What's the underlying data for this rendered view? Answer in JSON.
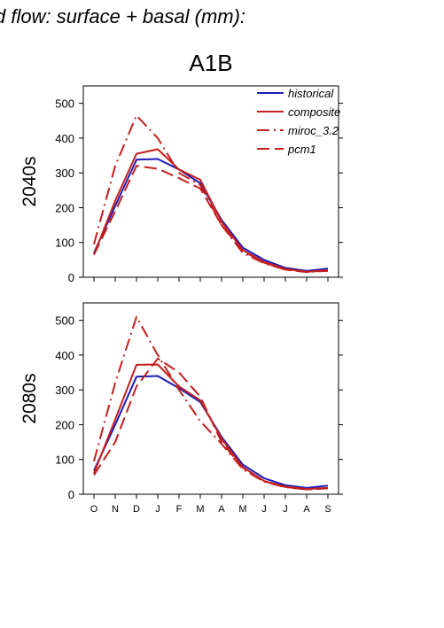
{
  "figure": {
    "title_partial": "d flow: surface + basal (mm):",
    "scenario": "A1B"
  },
  "chart_data": [
    {
      "type": "line",
      "panel_label": "2040s",
      "categories": [
        "O",
        "N",
        "D",
        "J",
        "F",
        "M",
        "A",
        "M",
        "J",
        "J",
        "A",
        "S"
      ],
      "ylim": [
        0,
        550
      ],
      "yticks": [
        0,
        100,
        200,
        300,
        400,
        500
      ],
      "show_xtick_labels": false,
      "legend": "top-right",
      "grid": false,
      "series": [
        {
          "name": "historical",
          "color": "#1c1cb8",
          "style": "solid",
          "values": [
            70,
            205,
            338,
            340,
            310,
            270,
            165,
            85,
            50,
            27,
            18,
            25
          ]
        },
        {
          "name": "composite",
          "color": "#c41e1e",
          "style": "solid",
          "values": [
            65,
            220,
            355,
            368,
            310,
            280,
            160,
            78,
            44,
            24,
            16,
            20
          ]
        },
        {
          "name": "miroc_3.2",
          "color": "#c41e1e",
          "style": "dashdot",
          "values": [
            95,
            320,
            465,
            400,
            300,
            265,
            150,
            70,
            40,
            22,
            15,
            18
          ]
        },
        {
          "name": "pcm1",
          "color": "#c41e1e",
          "style": "dashed",
          "values": [
            65,
            190,
            320,
            312,
            285,
            255,
            150,
            75,
            42,
            22,
            15,
            20
          ]
        }
      ]
    },
    {
      "type": "line",
      "panel_label": "2080s",
      "categories": [
        "O",
        "N",
        "D",
        "J",
        "F",
        "M",
        "A",
        "M",
        "J",
        "J",
        "A",
        "S"
      ],
      "ylim": [
        0,
        550
      ],
      "yticks": [
        0,
        100,
        200,
        300,
        400,
        500
      ],
      "show_xtick_labels": true,
      "grid": false,
      "series": [
        {
          "name": "historical",
          "color": "#1c1cb8",
          "style": "solid",
          "values": [
            68,
            200,
            338,
            340,
            305,
            265,
            165,
            85,
            46,
            26,
            18,
            25
          ]
        },
        {
          "name": "composite",
          "color": "#c41e1e",
          "style": "solid",
          "values": [
            60,
            215,
            372,
            373,
            310,
            270,
            160,
            78,
            38,
            22,
            15,
            18
          ]
        },
        {
          "name": "miroc_3.2",
          "color": "#c41e1e",
          "style": "dashdot",
          "values": [
            95,
            320,
            510,
            400,
            300,
            210,
            145,
            72,
            36,
            20,
            14,
            17
          ]
        },
        {
          "name": "pcm1",
          "color": "#c41e1e",
          "style": "dashed",
          "values": [
            55,
            150,
            310,
            390,
            350,
            280,
            150,
            76,
            38,
            21,
            14,
            17
          ]
        }
      ]
    }
  ]
}
